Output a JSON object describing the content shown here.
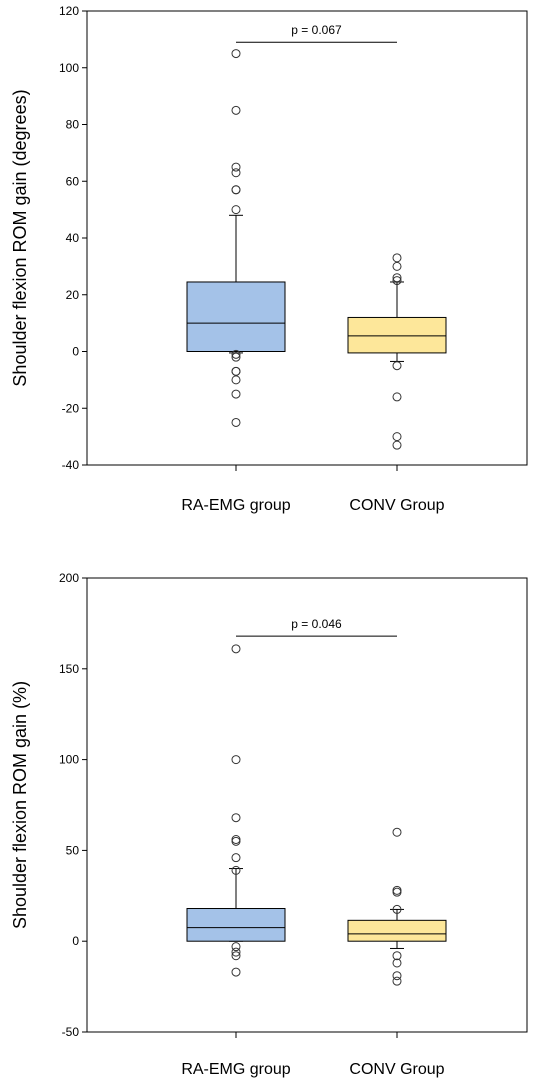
{
  "chart_data": [
    {
      "type": "box",
      "title": "",
      "ylabel": "Shoulder flexion ROM gain (degrees)",
      "ylim": [
        -40,
        120
      ],
      "yticks": [
        -40,
        -20,
        0,
        20,
        40,
        60,
        80,
        100,
        120
      ],
      "categories": [
        "RA-EMG group",
        "CONV Group"
      ],
      "series": [
        {
          "category": "RA-EMG group",
          "color": "#a4c2e8",
          "q1": 0,
          "median": 10,
          "q3": 24.5,
          "whisker_low": -0.5,
          "whisker_high": 48,
          "outliers": [
            105,
            85,
            65,
            63,
            57,
            57,
            50,
            -1,
            -2,
            -7,
            -10,
            -7,
            -15,
            -25
          ]
        },
        {
          "category": "CONV Group",
          "color": "#fde79a",
          "q1": -0.5,
          "median": 5.5,
          "q3": 12,
          "whisker_low": -3.5,
          "whisker_high": 24.5,
          "outliers": [
            33,
            30,
            26,
            25,
            -5,
            -16,
            -30,
            -33
          ]
        }
      ],
      "annotation": {
        "text": "p = 0.067",
        "y": 109
      }
    },
    {
      "type": "box",
      "title": "",
      "ylabel": "Shoulder flexion ROM gain (%)",
      "ylim": [
        -50,
        200
      ],
      "yticks": [
        -50,
        0,
        50,
        100,
        150,
        200
      ],
      "categories": [
        "RA-EMG group",
        "CONV Group"
      ],
      "series": [
        {
          "category": "RA-EMG group",
          "color": "#a4c2e8",
          "q1": 0,
          "median": 7.5,
          "q3": 18,
          "whisker_low": 0,
          "whisker_high": 40,
          "outliers": [
            161,
            100,
            68,
            56,
            55,
            46,
            39,
            -3,
            -6,
            -8,
            -17
          ]
        },
        {
          "category": "CONV Group",
          "color": "#fde79a",
          "q1": 0,
          "median": 4,
          "q3": 11.5,
          "whisker_low": -4,
          "whisker_high": 17.5,
          "outliers": [
            60,
            28,
            27,
            17.5,
            -8,
            -12,
            -19,
            -22
          ]
        }
      ],
      "annotation": {
        "text": "p = 0.046",
        "y": 168
      }
    }
  ]
}
